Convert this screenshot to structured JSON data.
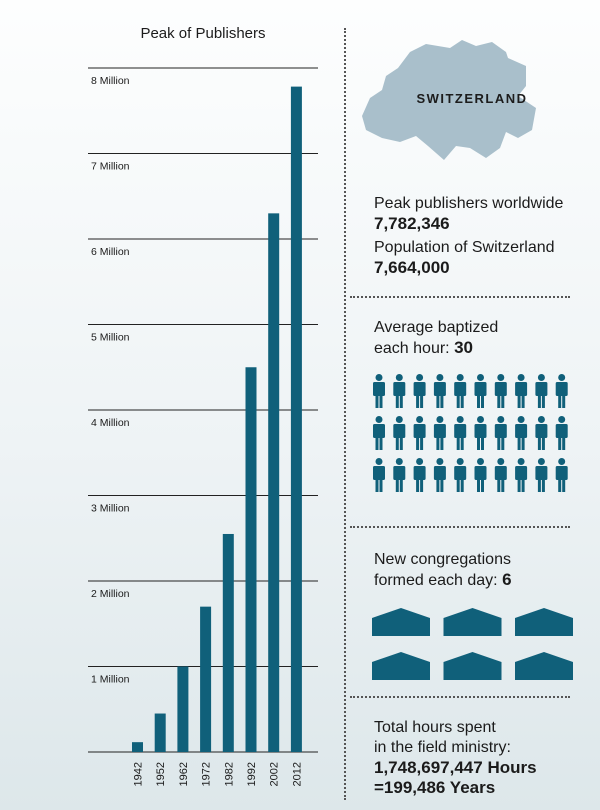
{
  "chart_data": {
    "type": "bar",
    "title": "Peak of Publishers",
    "categories": [
      "1942",
      "1952",
      "1962",
      "1972",
      "1982",
      "1992",
      "2002",
      "2012"
    ],
    "values": [
      115000,
      450000,
      1000000,
      1700000,
      2550000,
      4500000,
      6300000,
      7782346
    ],
    "ylim": [
      0,
      8000000
    ],
    "yticks": [
      {
        "value": 1000000,
        "label": "1 Million"
      },
      {
        "value": 2000000,
        "label": "2 Million"
      },
      {
        "value": 3000000,
        "label": "3 Million"
      },
      {
        "value": 4000000,
        "label": "4 Million"
      },
      {
        "value": 5000000,
        "label": "5 Million"
      },
      {
        "value": 6000000,
        "label": "6 Million"
      },
      {
        "value": 7000000,
        "label": "7 Million"
      },
      {
        "value": 8000000,
        "label": "8 Million"
      }
    ],
    "xlabel": "",
    "ylabel": "",
    "grid": true,
    "color": "#10607a"
  },
  "map": {
    "label": "SWITZERLAND",
    "fill": "#a9bfcb"
  },
  "stats": {
    "peak_label": "Peak publishers worldwide",
    "peak_value": "7,782,346",
    "population_label": "Population of Switzerland",
    "population_value": "7,664,000",
    "baptized_label_1": "Average baptized",
    "baptized_label_2": "each hour: ",
    "baptized_value": "30",
    "baptized_icon_count": 30,
    "congregations_label_1": "New congregations",
    "congregations_label_2": "formed each day: ",
    "congregations_value": "6",
    "congregations_icon_count": 6,
    "hours_label_1": "Total hours spent",
    "hours_label_2": "in the field ministry:",
    "hours_value": "1,748,697,447 Hours",
    "years_value": "=199,486 Years"
  },
  "icons": {
    "person": "person-icon",
    "kingdom_hall": "kingdom-hall-icon"
  },
  "colors": {
    "accent": "#10607a",
    "map": "#a9bfcb"
  }
}
